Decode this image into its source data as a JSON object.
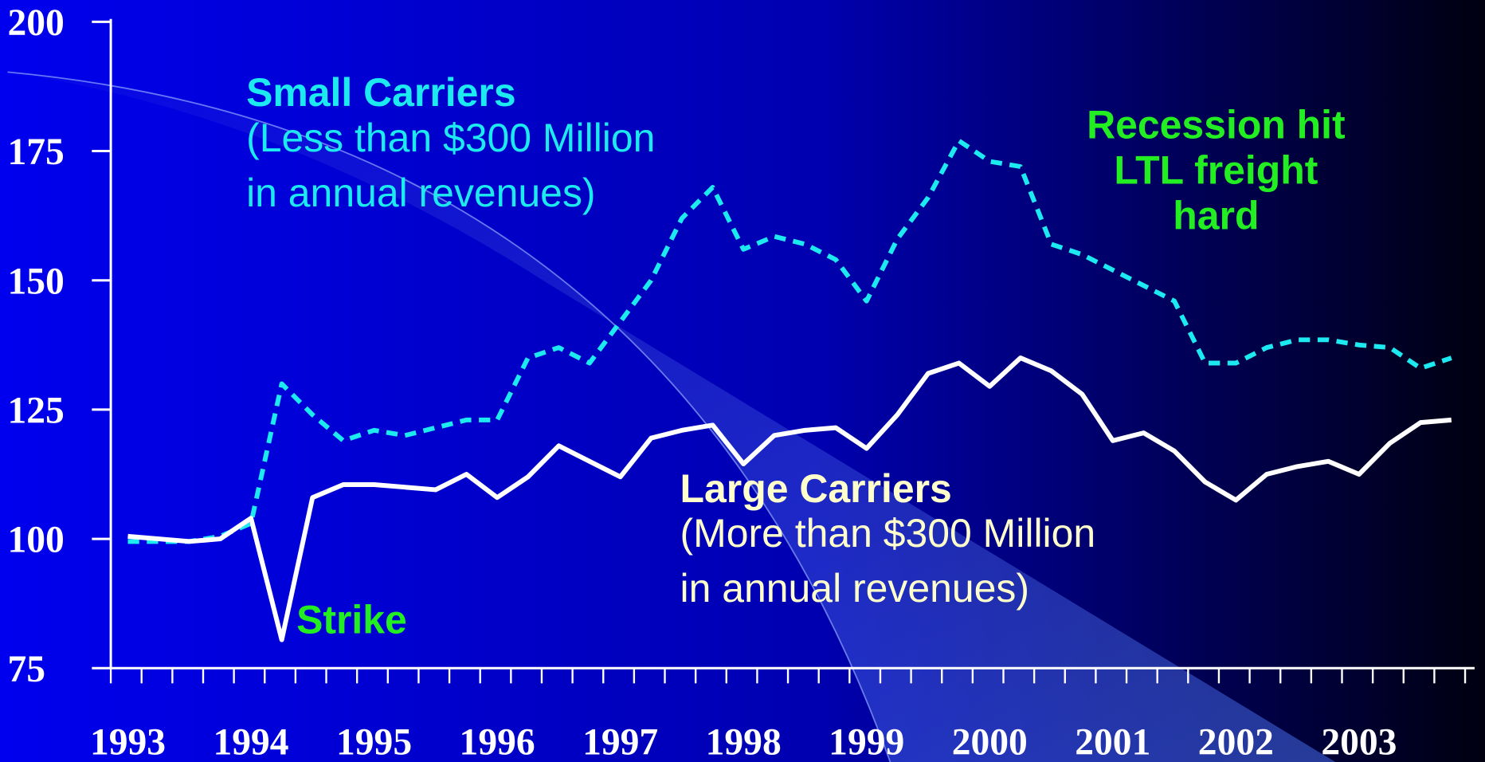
{
  "chart_data": {
    "type": "line",
    "categories": [
      "1993",
      null,
      null,
      null,
      "1994",
      null,
      null,
      null,
      "1995",
      null,
      null,
      null,
      "1996",
      null,
      null,
      null,
      "1997",
      null,
      null,
      null,
      "1998",
      null,
      null,
      null,
      "1999",
      null,
      null,
      null,
      "2000",
      null,
      null,
      null,
      "2001",
      null,
      null,
      null,
      "2002",
      null,
      null,
      null,
      "2003",
      null,
      null,
      null
    ],
    "series": [
      {
        "name": "Small Carriers",
        "color": "#1de9f0",
        "dash": true,
        "values": [
          99.5,
          99.5,
          99.5,
          100.5,
          103,
          130,
          124,
          119,
          121,
          120,
          121.5,
          123,
          123,
          135,
          137,
          134,
          142,
          150,
          162,
          168,
          156,
          158.5,
          157,
          154,
          146,
          158,
          166,
          177,
          173,
          172,
          157,
          155,
          152,
          149,
          146,
          134,
          134,
          137,
          138.5,
          138.5,
          137.5,
          137,
          133,
          135
        ]
      },
      {
        "name": "Large Carriers",
        "color": "#ffffff",
        "dash": false,
        "values": [
          100.5,
          100,
          99.5,
          100,
          104,
          80.5,
          108,
          110.5,
          110.5,
          110,
          109.5,
          112.5,
          108,
          112,
          118,
          115,
          112,
          119.5,
          121,
          122,
          114.5,
          120,
          121,
          121.5,
          117.5,
          124,
          132,
          134,
          129.5,
          135,
          132.5,
          128,
          119,
          120.5,
          117,
          111,
          107.5,
          112.5,
          114,
          115,
          112.5,
          118.5,
          122.5,
          123
        ]
      }
    ],
    "annotations": [
      {
        "lines": [
          "(Less than $300 Million",
          "in annual revenues)"
        ],
        "color": "#1de9f0"
      },
      {
        "lines": [
          "(More than $300 Million",
          "in annual revenues)"
        ],
        "color": "#ffffcc"
      },
      {
        "lines": [
          "Strike"
        ],
        "color": "#22ee22"
      },
      {
        "lines": [
          "Recession hit",
          "LTL freight",
          "hard"
        ],
        "color": "#22ee22"
      }
    ],
    "ylim": [
      75,
      200
    ],
    "yticks": [
      75,
      100,
      125,
      150,
      175,
      200
    ],
    "grid": false
  }
}
